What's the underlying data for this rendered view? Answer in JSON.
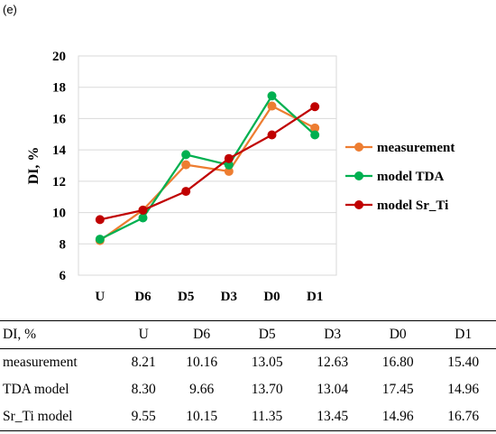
{
  "panel_label": "(e)",
  "colors": {
    "measurement": "#ED7D31",
    "model_tda": "#00B050",
    "model_srti": "#C00000",
    "grid": "#d9d9d9"
  },
  "chart_data": {
    "type": "line",
    "categories": [
      "U",
      "D6",
      "D5",
      "D3",
      "D0",
      "D1"
    ],
    "ylabel": "DI, %",
    "xlabel": "",
    "ylim": [
      6,
      20
    ],
    "yticks": [
      6,
      8,
      10,
      12,
      14,
      16,
      18,
      20
    ],
    "grid": true,
    "legend_position": "right",
    "series": [
      {
        "name": "measurement",
        "color": "#ED7D31",
        "values": [
          8.21,
          10.16,
          13.05,
          12.63,
          16.8,
          15.4
        ]
      },
      {
        "name": "model TDA",
        "color": "#00B050",
        "values": [
          8.3,
          9.66,
          13.7,
          13.04,
          17.45,
          14.96
        ]
      },
      {
        "name": "model Sr_Ti",
        "color": "#C00000",
        "values": [
          9.55,
          10.15,
          11.35,
          13.45,
          14.96,
          16.76
        ]
      }
    ]
  },
  "table": {
    "header": [
      "DI, %",
      "U",
      "D6",
      "D5",
      "D3",
      "D0",
      "D1"
    ],
    "rows": [
      [
        "measurement",
        "8.21",
        "10.16",
        "13.05",
        "12.63",
        "16.80",
        "15.40"
      ],
      [
        "TDA model",
        "8.30",
        "9.66",
        "13.70",
        "13.04",
        "17.45",
        "14.96"
      ],
      [
        "Sr_Ti model",
        "9.55",
        "10.15",
        "11.35",
        "13.45",
        "14.96",
        "16.76"
      ]
    ]
  }
}
